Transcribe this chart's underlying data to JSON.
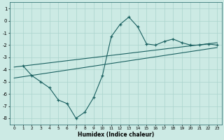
{
  "title": "",
  "xlabel": "Humidex (Indice chaleur)",
  "background_color": "#cceae4",
  "grid_color": "#aad4cc",
  "line_color": "#1a6060",
  "xlim": [
    -0.5,
    23.5
  ],
  "ylim": [
    -8.5,
    1.5
  ],
  "yticks": [
    1,
    0,
    -1,
    -2,
    -3,
    -4,
    -5,
    -6,
    -7,
    -8
  ],
  "xticks": [
    0,
    1,
    2,
    3,
    4,
    5,
    6,
    7,
    8,
    9,
    10,
    11,
    12,
    13,
    14,
    15,
    16,
    17,
    18,
    19,
    20,
    21,
    22,
    23
  ],
  "curve1_x": [
    1,
    2,
    3,
    4,
    5,
    6,
    7,
    8,
    9,
    10,
    11,
    12,
    13,
    14,
    15,
    16,
    17,
    18,
    19,
    20,
    21,
    22,
    23
  ],
  "curve1_y": [
    -3.7,
    -4.5,
    -5.0,
    -5.5,
    -6.5,
    -6.8,
    -8.0,
    -7.5,
    -6.3,
    -4.5,
    -1.3,
    -0.3,
    0.3,
    -0.5,
    -1.9,
    -2.0,
    -1.7,
    -1.5,
    -1.8,
    -2.0,
    -2.0,
    -1.9,
    -2.0
  ],
  "curve2_x": [
    0,
    23
  ],
  "curve2_y": [
    -3.8,
    -1.8
  ],
  "curve3_x": [
    0,
    23
  ],
  "curve3_y": [
    -4.7,
    -2.2
  ]
}
